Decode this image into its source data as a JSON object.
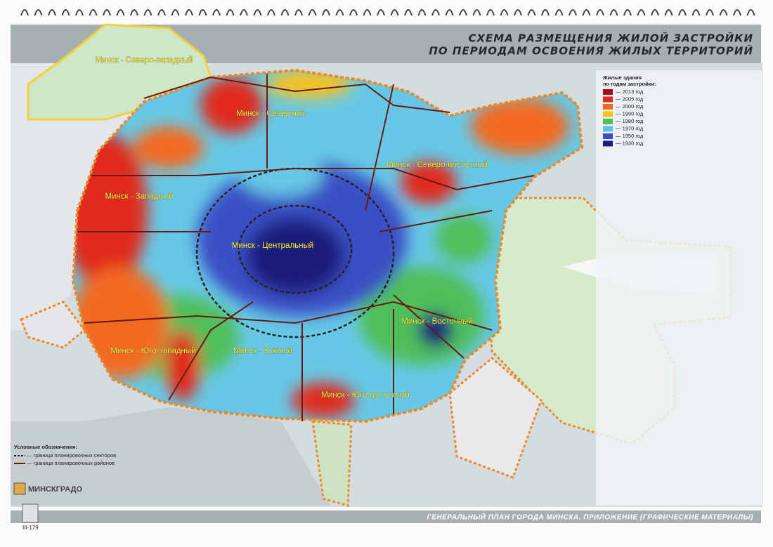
{
  "header": {
    "title_lines": [
      "СХЕМА РАЗМЕЩЕНИЯ ЖИЛОЙ ЗАСТРОЙКИ",
      "ПО ПЕРИОДАМ ОСВОЕНИЯ ЖИЛЫХ ТЕРРИТОРИЙ"
    ]
  },
  "legend": {
    "title_lines": [
      "Жилые здания",
      "по годам застройки:"
    ],
    "items": [
      {
        "label": "— 2013 год",
        "color": "#a3101c"
      },
      {
        "label": "— 2005 год",
        "color": "#e02a1c"
      },
      {
        "label": "— 2000 год",
        "color": "#f26a21"
      },
      {
        "label": "— 1990 год",
        "color": "#f7c21a"
      },
      {
        "label": "— 1980 год",
        "color": "#4fbf5a"
      },
      {
        "label": "— 1970 год",
        "color": "#5fc3e8"
      },
      {
        "label": "— 1950 год",
        "color": "#3b4fc4"
      },
      {
        "label": "— 1930 год",
        "color": "#1a1f7a"
      }
    ]
  },
  "districts": [
    "Минск - Северо-западный",
    "Минск - Северный",
    "Минск - Западный",
    "Минск - Северо-восточный",
    "Минск - Центральный",
    "Минск - Восточный",
    "Минск - Юго-западный",
    "Минск - Южный",
    "Минск - Юго-восточный"
  ],
  "boundaries": {
    "title": "Условные обозначения:",
    "items": [
      "— граница планировочных секторов",
      "— граница планировочных районов"
    ]
  },
  "logo": "МИНСКГРАДО",
  "page_number": "III-179",
  "footer": "ГЕНЕРАЛЬНЫЙ ПЛАН ГОРОДА МИНСКА.  ПРИЛОЖЕНИЕ (ГРАФИЧЕСКИЕ МАТЕРИАЛЫ)"
}
